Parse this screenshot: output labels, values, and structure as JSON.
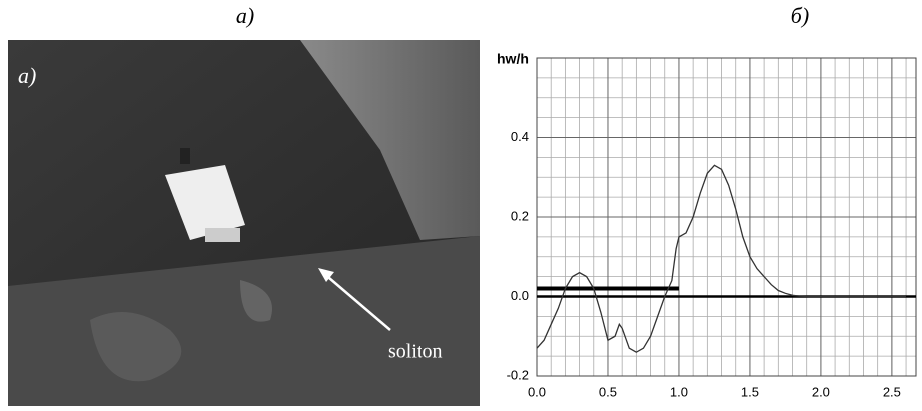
{
  "panels": {
    "left_title": "a)",
    "right_title": "б)"
  },
  "photo": {
    "corner_label": "a)",
    "arrow_label": "soliton"
  },
  "chart_data": {
    "type": "line",
    "ylabel": "hw/h",
    "x": [
      0,
      0.05,
      0.1,
      0.15,
      0.2,
      0.25,
      0.3,
      0.35,
      0.4,
      0.45,
      0.5,
      0.55,
      0.58,
      0.6,
      0.65,
      0.7,
      0.75,
      0.8,
      0.85,
      0.9,
      0.95,
      0.98,
      1.0,
      1.05,
      1.1,
      1.15,
      1.2,
      1.25,
      1.3,
      1.35,
      1.4,
      1.45,
      1.5,
      1.55,
      1.6,
      1.65,
      1.7,
      1.75,
      1.8,
      1.85,
      1.9,
      2.0,
      2.6
    ],
    "series": [
      {
        "color": "#333333",
        "values": [
          -0.13,
          -0.11,
          -0.07,
          -0.03,
          0.02,
          0.05,
          0.06,
          0.05,
          0.02,
          -0.04,
          -0.11,
          -0.1,
          -0.07,
          -0.08,
          -0.13,
          -0.14,
          -0.13,
          -0.1,
          -0.05,
          0.0,
          0.04,
          0.12,
          0.15,
          0.16,
          0.2,
          0.26,
          0.31,
          0.33,
          0.32,
          0.28,
          0.22,
          0.15,
          0.1,
          0.07,
          0.05,
          0.03,
          0.015,
          0.008,
          0.003,
          0.001,
          0,
          0,
          0
        ]
      }
    ],
    "xlim": [
      0,
      2.67
    ],
    "ylim": [
      -0.2,
      0.6
    ],
    "xticks": [
      {
        "value": 0,
        "label": "0.0"
      },
      0.5,
      {
        "value": 1,
        "label": "1.0"
      },
      1.5,
      {
        "value": 2,
        "label": "2.0"
      },
      2.5
    ],
    "yticks": [
      -0.2,
      {
        "value": 0,
        "label": "0.0"
      },
      0.2,
      0.4
    ],
    "xgrid_step": 0.1,
    "ygrid_step": 0.05,
    "baseline_y": 0,
    "segment": {
      "x": [
        0,
        1.0
      ],
      "y": 0.02
    }
  }
}
